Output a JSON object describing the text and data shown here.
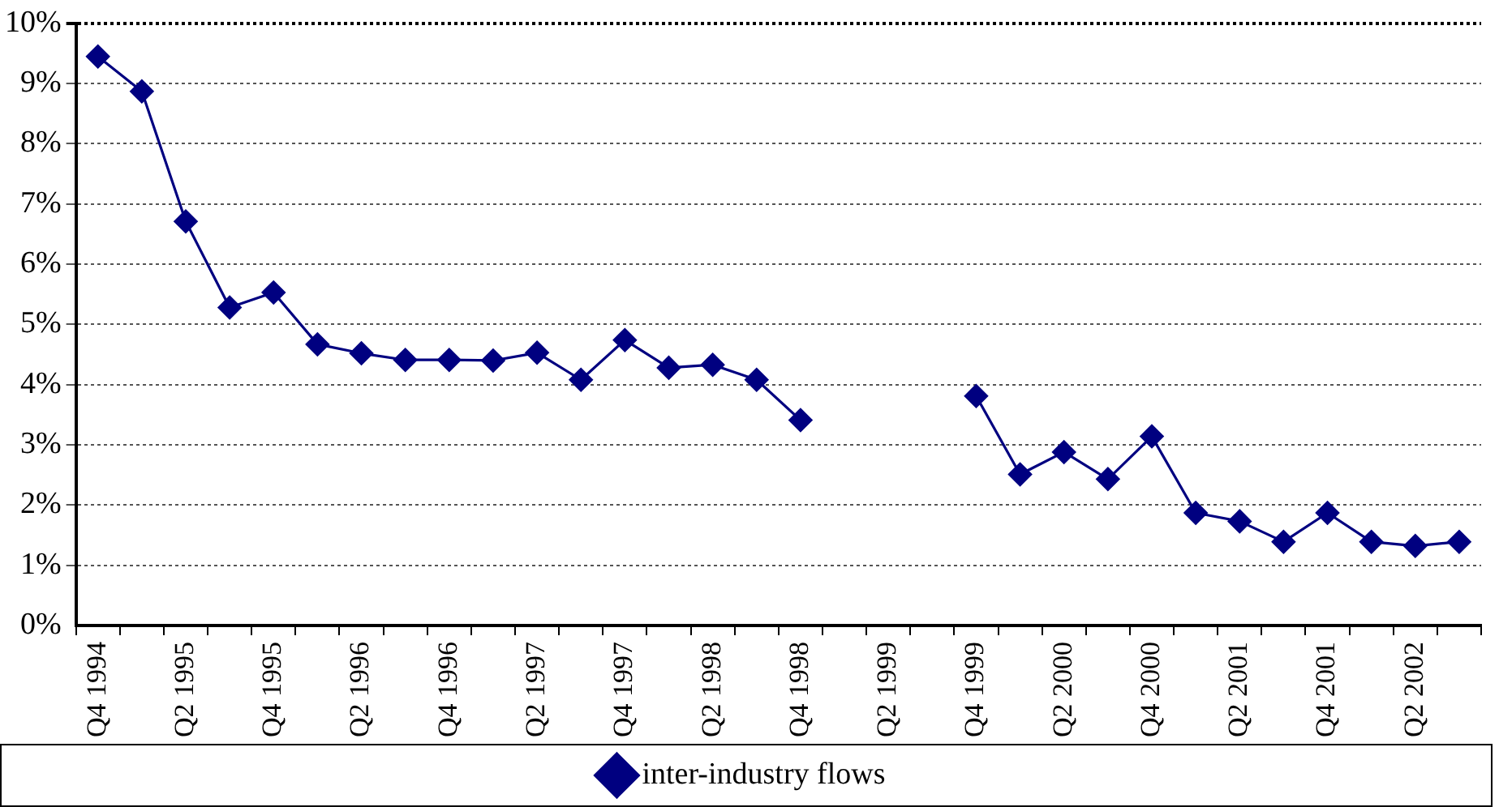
{
  "chart_data": {
    "type": "line",
    "categories": [
      "Q4 1994",
      null,
      "Q2 1995",
      null,
      "Q4 1995",
      null,
      "Q2 1996",
      null,
      "Q4 1996",
      null,
      "Q2 1997",
      null,
      "Q4 1997",
      null,
      "Q2 1998",
      null,
      "Q4 1998",
      null,
      "Q2 1999",
      null,
      "Q4 1999",
      null,
      "Q2 2000",
      null,
      "Q4 2000",
      null,
      "Q2 2001",
      null,
      "Q4 2001",
      null,
      "Q2 2002",
      null
    ],
    "series": [
      {
        "name": "inter-industry flows",
        "color": "#000080",
        "values": [
          9.45,
          8.87,
          6.71,
          5.28,
          5.53,
          4.67,
          4.52,
          4.41,
          4.41,
          4.4,
          4.53,
          4.08,
          4.74,
          4.28,
          4.33,
          4.08,
          3.41,
          null,
          null,
          null,
          3.81,
          2.51,
          2.88,
          2.43,
          3.14,
          1.87,
          1.73,
          1.39,
          1.87,
          1.39,
          1.32,
          1.39
        ]
      }
    ],
    "ylim": [
      0,
      10
    ],
    "yticks": [
      {
        "value": 0,
        "label": "0%"
      },
      {
        "value": 1,
        "label": "1%"
      },
      {
        "value": 2,
        "label": "2%"
      },
      {
        "value": 3,
        "label": "3%"
      },
      {
        "value": 4,
        "label": "4%"
      },
      {
        "value": 5,
        "label": "5%"
      },
      {
        "value": 6,
        "label": "6%"
      },
      {
        "value": 7,
        "label": "7%"
      },
      {
        "value": 8,
        "label": "8%"
      },
      {
        "value": 9,
        "label": "9%"
      },
      {
        "value": 10,
        "label": "10%"
      }
    ],
    "grid": "y",
    "legend": "bottom",
    "marker": "diamond",
    "line_style": "solid"
  }
}
